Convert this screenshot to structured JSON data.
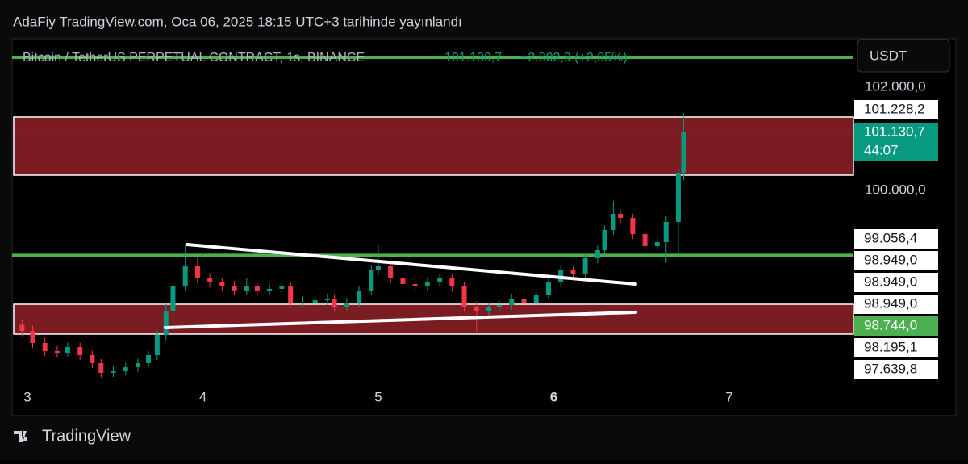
{
  "header": {
    "publisher": "AdaFiy TradingView.com, Oca 06, 2025 18:15 UTC+3 tarihinde yayınlandı"
  },
  "chart_data": {
    "type": "candlestick",
    "symbol": "Bitcoin / TetherUS PERPETUAL CONTRACT, 1s, BINANCE",
    "last_price_text": "101.130,7",
    "change_text": "+2.802,9 (+2,85%)",
    "currency": "USDT",
    "countdown": "44:07",
    "x": [
      2.97,
      3.03,
      3.1,
      3.17,
      3.23,
      3.3,
      3.37,
      3.42,
      3.49,
      3.56,
      3.63,
      3.69,
      3.74,
      3.79,
      3.83,
      3.9,
      3.97,
      4.04,
      4.11,
      4.18,
      4.25,
      4.31,
      4.38,
      4.45,
      4.5,
      4.57,
      4.64,
      4.71,
      4.75,
      4.82,
      4.89,
      4.96,
      5.0,
      5.07,
      5.14,
      5.21,
      5.28,
      5.35,
      5.42,
      5.49,
      5.56,
      5.63,
      5.69,
      5.76,
      5.83,
      5.9,
      5.97,
      6.04,
      6.11,
      6.18,
      6.25,
      6.29,
      6.34,
      6.38,
      6.45,
      6.52,
      6.59,
      6.64,
      6.71,
      6.74
    ],
    "open": [
      97400,
      97281,
      97047,
      96891,
      96859,
      96969,
      96813,
      96656,
      96469,
      96500,
      96578,
      96656,
      96813,
      97203,
      97672,
      98141,
      98531,
      98297,
      98219,
      98141,
      98063,
      98141,
      98063,
      98094,
      98141,
      97828,
      97828,
      97875,
      97906,
      97750,
      97828,
      98063,
      98453,
      98531,
      98297,
      98188,
      98141,
      98219,
      98297,
      98141,
      97750,
      97672,
      97750,
      97781,
      97906,
      97828,
      97984,
      98219,
      98453,
      98375,
      98688,
      98844,
      99234,
      99547,
      99469,
      99156,
      98922,
      99000,
      99391,
      100328
    ],
    "high": [
      97500,
      97380,
      97150,
      96990,
      97060,
      97050,
      96900,
      96740,
      96600,
      96660,
      96740,
      96900,
      97300,
      97800,
      98250,
      98950,
      98700,
      98400,
      98300,
      98250,
      98300,
      98220,
      98200,
      98250,
      98220,
      97950,
      97960,
      98000,
      97990,
      97920,
      98150,
      98560,
      98950,
      98620,
      98380,
      98280,
      98300,
      98400,
      98380,
      98220,
      97850,
      97830,
      97870,
      98000,
      97990,
      98080,
      98300,
      98550,
      98530,
      98780,
      98950,
      99320,
      99800,
      99620,
      99550,
      99230,
      99080,
      99500,
      100420,
      101500
    ],
    "low": [
      97180,
      96950,
      96790,
      96760,
      96770,
      96720,
      96560,
      96380,
      96390,
      96420,
      96490,
      96570,
      96720,
      97100,
      97560,
      98050,
      98200,
      98120,
      98050,
      97970,
      97980,
      97960,
      97980,
      97990,
      97730,
      97740,
      97740,
      97780,
      97650,
      97660,
      97740,
      97970,
      98360,
      98200,
      98090,
      98050,
      98060,
      98130,
      98040,
      97650,
      97250,
      97580,
      97660,
      97690,
      97730,
      97740,
      97890,
      98120,
      98280,
      98290,
      98590,
      98750,
      99140,
      99370,
      99060,
      98830,
      98850,
      98600,
      98700,
      100200
    ],
    "close": [
      97281,
      97047,
      96891,
      96859,
      96969,
      96813,
      96656,
      96469,
      96500,
      96578,
      96656,
      96813,
      97203,
      97672,
      98141,
      98531,
      98297,
      98219,
      98141,
      98063,
      98141,
      98063,
      98094,
      98141,
      97828,
      97828,
      97875,
      97906,
      97750,
      97828,
      98063,
      98453,
      98531,
      98297,
      98188,
      98141,
      98219,
      98297,
      98141,
      97750,
      97672,
      97750,
      97781,
      97906,
      97828,
      97984,
      98219,
      98453,
      98375,
      98688,
      98844,
      99234,
      99547,
      99469,
      99156,
      98922,
      99000,
      99391,
      100328,
      101130.7
    ],
    "up_color": "#089981",
    "down_color": "#f23645",
    "xlim": [
      2.913,
      7.708
    ],
    "xticks": [
      3,
      4,
      5,
      6,
      7
    ],
    "ylim": [
      96187.5,
      102937.5
    ],
    "yticks": [
      {
        "value": 102000,
        "label": "102.000,0"
      },
      {
        "value": 100000,
        "label": "100.000,0"
      }
    ],
    "zones": [
      {
        "from": 100297,
        "to": 101422,
        "color": "#7a1c22"
      },
      {
        "from": 97219,
        "to": 97797,
        "color": "#7a1c22"
      }
    ],
    "hlines": [
      {
        "value": 102578,
        "color": "#4caf50"
      },
      {
        "value": 98744,
        "color": "#4caf50"
      }
    ],
    "trendlines": [
      {
        "x": [
          3.91,
          6.466
        ],
        "y": [
          98953,
          98187
        ]
      },
      {
        "x": [
          3.786,
          6.467
        ],
        "y": [
          97344,
          97641
        ]
      }
    ],
    "price_labels": [
      {
        "value": 101228.2,
        "label": "101.228,2",
        "color": "#ffffff"
      },
      {
        "value": 101130.7,
        "label": "101.130,7",
        "color": "#089981"
      },
      {
        "value": 99056.4,
        "label": "99.056,4",
        "color": "#ffffff"
      },
      {
        "value": 98949.0,
        "label": "98.949,0",
        "color": "#ffffff"
      },
      {
        "value": 98949.0,
        "label": "98.949,0",
        "color": "#ffffff"
      },
      {
        "value": 98949.0,
        "label": "98.949,0",
        "color": "#ffffff"
      },
      {
        "value": 98744.0,
        "label": "98.744,0",
        "color": "#4caf50"
      },
      {
        "value": 98195.1,
        "label": "98.195,1",
        "color": "#ffffff"
      },
      {
        "value": 97639.8,
        "label": "97.639,8",
        "color": "#ffffff"
      }
    ]
  },
  "footer": {
    "brand": "TradingView"
  }
}
